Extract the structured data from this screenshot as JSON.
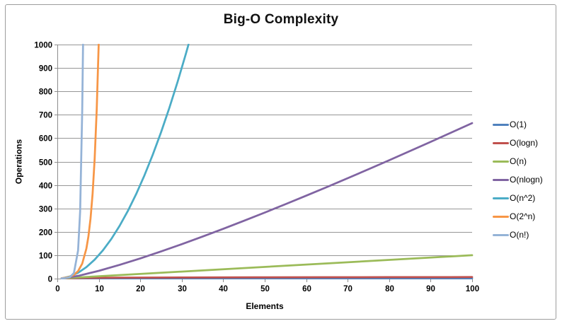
{
  "chart_data": {
    "type": "line",
    "title": "Big-O Complexity",
    "xlabel": "Elements",
    "ylabel": "Operations",
    "xlim": [
      0,
      100
    ],
    "ylim": [
      0,
      1000
    ],
    "x_ticks": [
      0,
      10,
      20,
      30,
      40,
      50,
      60,
      70,
      80,
      90,
      100
    ],
    "y_ticks": [
      0,
      100,
      200,
      300,
      400,
      500,
      600,
      700,
      800,
      900,
      1000
    ],
    "grid": "horizontal-major",
    "grid_color": "#969696",
    "axis_color": "#8c8c8c",
    "tick_label_color": "#000000",
    "background_color": "#ffffff",
    "legend_position": "right",
    "series": [
      {
        "name": "O(1)",
        "color": "#4F81BD",
        "points": [
          [
            1,
            1
          ],
          [
            100,
            1
          ]
        ]
      },
      {
        "name": "O(logn)",
        "color": "#C0504D",
        "points": [
          [
            1,
            0
          ],
          [
            1.5,
            0.585
          ],
          [
            2,
            1
          ],
          [
            3,
            1.585
          ],
          [
            4,
            2
          ],
          [
            6,
            2.585
          ],
          [
            8,
            3
          ],
          [
            12,
            3.585
          ],
          [
            16,
            4
          ],
          [
            24,
            4.585
          ],
          [
            32,
            5
          ],
          [
            48,
            5.585
          ],
          [
            64,
            6
          ],
          [
            80,
            6.322
          ],
          [
            100,
            6.644
          ]
        ]
      },
      {
        "name": "O(n)",
        "color": "#9BBB59",
        "points": [
          [
            1,
            1
          ],
          [
            100,
            100
          ]
        ]
      },
      {
        "name": "O(nlogn)",
        "color": "#8064A2",
        "points": [
          [
            1,
            0
          ],
          [
            5,
            11.61
          ],
          [
            10,
            33.22
          ],
          [
            15,
            58.6
          ],
          [
            20,
            86.44
          ],
          [
            25,
            116.1
          ],
          [
            30,
            147.21
          ],
          [
            35,
            179.5
          ],
          [
            40,
            212.88
          ],
          [
            45,
            247.2
          ],
          [
            50,
            282.19
          ],
          [
            55,
            318.0
          ],
          [
            60,
            354.41
          ],
          [
            65,
            391.35
          ],
          [
            70,
            428.99
          ],
          [
            75,
            467.16
          ],
          [
            80,
            505.75
          ],
          [
            85,
            544.8
          ],
          [
            90,
            584.27
          ],
          [
            95,
            624.13
          ],
          [
            100,
            664.39
          ]
        ]
      },
      {
        "name": "O(n^2)",
        "color": "#4BACC6",
        "points": [
          [
            1,
            1
          ],
          [
            3,
            9
          ],
          [
            5,
            25
          ],
          [
            7,
            49
          ],
          [
            9,
            81
          ],
          [
            11,
            121
          ],
          [
            13,
            169
          ],
          [
            15,
            225
          ],
          [
            17,
            289
          ],
          [
            19,
            361
          ],
          [
            21,
            441
          ],
          [
            23,
            529
          ],
          [
            25,
            625
          ],
          [
            27,
            729
          ],
          [
            29,
            841
          ],
          [
            31,
            961
          ],
          [
            31.62,
            1000
          ]
        ]
      },
      {
        "name": "O(2^n)",
        "color": "#F79646",
        "points": [
          [
            1,
            2
          ],
          [
            2,
            4
          ],
          [
            3,
            8
          ],
          [
            4,
            16
          ],
          [
            5,
            32
          ],
          [
            6,
            64
          ],
          [
            7,
            128
          ],
          [
            7.5,
            181
          ],
          [
            8,
            256
          ],
          [
            8.5,
            362
          ],
          [
            9,
            512
          ],
          [
            9.5,
            724
          ],
          [
            9.97,
            1000
          ]
        ]
      },
      {
        "name": "O(n!)",
        "color": "#95B3D7",
        "points": [
          [
            1,
            1
          ],
          [
            2,
            2
          ],
          [
            3,
            6
          ],
          [
            4,
            24
          ],
          [
            5,
            120
          ],
          [
            5.5,
            288
          ],
          [
            6,
            720
          ],
          [
            6.2,
            1000
          ]
        ]
      }
    ]
  }
}
